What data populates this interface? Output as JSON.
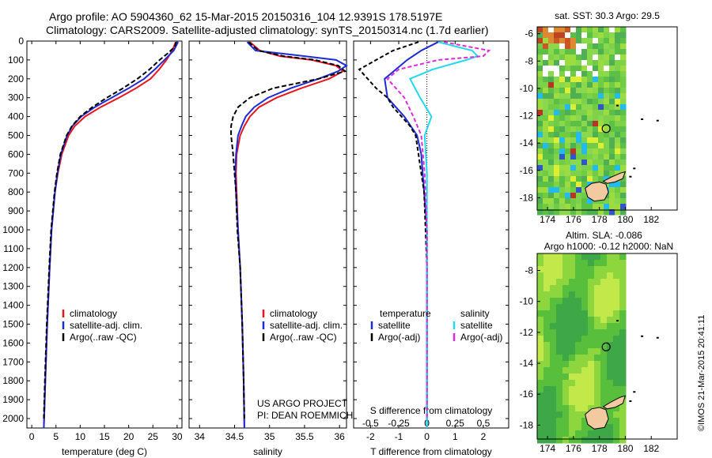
{
  "header": {
    "line1": "Argo profile: AO 5904360_62 15-Mar-2015 20150316_104 12.9391S 178.5197E",
    "line2": "Climatology: CARS2009. Satellite-adjusted climatology: synTS_20150314.nc (1.7d earlier)"
  },
  "side_stamp": "©IMOS 21-Mar-2015 20:41:11",
  "colors": {
    "climatology": "#e8141e",
    "satellite": "#1c2bd6",
    "argo": "#000000",
    "satellite_salinity": "#22d8ee",
    "argo_salinity": "#e02ae0",
    "land": "#f3c9a0"
  },
  "chart_data": [
    {
      "type": "line",
      "id": "temperature",
      "xlabel": "temperature (deg C)",
      "xlim": [
        -1,
        31
      ],
      "ylim": [
        2050,
        0
      ],
      "xticks": [
        0,
        5,
        10,
        15,
        20,
        25,
        30
      ],
      "yticks": [
        0,
        100,
        200,
        300,
        400,
        500,
        600,
        700,
        800,
        900,
        1000,
        1100,
        1200,
        1300,
        1400,
        1500,
        1600,
        1700,
        1800,
        1900,
        2000
      ],
      "legend": [
        "climatology",
        "satellite-adj. clim.",
        "Argo(..raw -QC)"
      ],
      "series": [
        {
          "name": "climatology",
          "color": "#e8141e",
          "depth": [
            5,
            50,
            100,
            150,
            200,
            250,
            300,
            350,
            400,
            450,
            500,
            600,
            700,
            800,
            1000,
            1200,
            1500,
            1800,
            2050
          ],
          "values": [
            29.7,
            29.0,
            27.8,
            26.3,
            24.5,
            21.5,
            18.0,
            14.2,
            11.0,
            8.9,
            7.6,
            6.2,
            5.4,
            4.8,
            4.1,
            3.7,
            3.2,
            2.8,
            2.5
          ]
        },
        {
          "name": "satellite-adj. clim.",
          "color": "#1c2bd6",
          "depth": [
            5,
            50,
            100,
            150,
            200,
            250,
            300,
            350,
            400,
            450,
            500,
            600,
            700,
            800,
            1000,
            1200,
            1500,
            1800,
            2050
          ],
          "values": [
            30.2,
            29.3,
            27.4,
            25.4,
            23.2,
            20.0,
            16.5,
            13.0,
            10.2,
            8.4,
            7.3,
            6.0,
            5.3,
            4.8,
            4.1,
            3.7,
            3.2,
            2.8,
            2.5
          ]
        },
        {
          "name": "Argo(..raw -QC)",
          "color": "#000000",
          "depth": [
            5,
            30,
            60,
            100,
            150,
            200,
            250,
            300,
            350,
            400,
            450,
            500,
            600,
            700,
            800,
            1000,
            1200,
            1500,
            1800,
            2000
          ],
          "values": [
            29.8,
            29.5,
            28.3,
            26.4,
            24.3,
            21.8,
            18.8,
            15.5,
            12.5,
            10.0,
            8.3,
            7.2,
            5.9,
            5.2,
            4.7,
            4.0,
            3.6,
            3.1,
            2.7,
            2.5
          ]
        }
      ]
    },
    {
      "type": "line",
      "id": "salinity",
      "xlabel": "salinity",
      "xlim": [
        33.85,
        36.1
      ],
      "ylim": [
        2050,
        0
      ],
      "xticks": [
        34,
        34.5,
        35,
        35.5,
        36
      ],
      "legend": [
        "climatology",
        "satellite-adj. clim.",
        "Argo(..raw -QC)"
      ],
      "annotation": [
        "US ARGO PROJECT",
        "PI: DEAN ROEMMICH"
      ],
      "series": [
        {
          "name": "climatology",
          "color": "#e8141e",
          "depth": [
            5,
            50,
            80,
            100,
            130,
            160,
            200,
            250,
            300,
            350,
            400,
            450,
            500,
            600,
            700,
            800,
            1000,
            1200,
            1500,
            1800,
            2050
          ],
          "values": [
            34.72,
            34.86,
            35.15,
            35.6,
            35.95,
            36.05,
            35.85,
            35.45,
            35.1,
            34.85,
            34.72,
            34.64,
            34.58,
            34.53,
            34.52,
            34.53,
            34.55,
            34.58,
            34.61,
            34.63,
            34.64
          ]
        },
        {
          "name": "satellite-adj. clim.",
          "color": "#1c2bd6",
          "depth": [
            5,
            50,
            80,
            100,
            130,
            160,
            200,
            250,
            300,
            350,
            400,
            450,
            500,
            600,
            700,
            800,
            1000,
            1200,
            1500,
            1800,
            2050
          ],
          "values": [
            34.68,
            34.8,
            35.5,
            35.95,
            36.1,
            35.98,
            35.7,
            35.3,
            34.98,
            34.78,
            34.66,
            34.6,
            34.55,
            34.52,
            34.51,
            34.52,
            34.55,
            34.58,
            34.61,
            34.63,
            34.64
          ]
        },
        {
          "name": "Argo(..raw -QC)",
          "color": "#000000",
          "depth": [
            5,
            50,
            80,
            100,
            130,
            160,
            200,
            250,
            300,
            350,
            400,
            450,
            500,
            600,
            700,
            800,
            1000,
            1200,
            1500,
            1800,
            2000
          ],
          "values": [
            34.7,
            34.84,
            35.2,
            35.65,
            35.98,
            36.08,
            35.7,
            35.05,
            34.72,
            34.55,
            34.48,
            34.45,
            34.45,
            34.48,
            34.5,
            34.52,
            34.54,
            34.58,
            34.61,
            34.63,
            34.64
          ]
        }
      ]
    },
    {
      "type": "line",
      "id": "difference",
      "xlabel": "T difference from climatology",
      "xlabel2": "S difference from climatology",
      "xlim": [
        -2.6,
        2.9
      ],
      "ylim": [
        2050,
        0
      ],
      "xticks": [
        -2,
        -1,
        0,
        1,
        2
      ],
      "sticks": [
        -0.5,
        -0.25,
        0,
        0.25,
        0.5
      ],
      "s_xlim": [
        -0.65,
        0.725
      ],
      "legend_t": [
        "temperature",
        "satellite",
        "Argo(-adj)"
      ],
      "legend_s": [
        "salinity",
        "satellite",
        "Argo(-adj)"
      ],
      "series": [
        {
          "name": "satellite",
          "quantity": "temperature",
          "color": "#1c2bd6",
          "depth": [
            5,
            50,
            100,
            150,
            200,
            300,
            400,
            500,
            600,
            800,
            1000,
            1500,
            2050
          ],
          "values": [
            0.4,
            -0.2,
            -0.7,
            -1.1,
            -1.5,
            -1.4,
            -0.8,
            -0.35,
            -0.2,
            -0.1,
            0,
            0,
            0
          ]
        },
        {
          "name": "Argo(-adj)",
          "quantity": "temperature",
          "color": "#000000",
          "depth": [
            5,
            50,
            100,
            150,
            200,
            250,
            300,
            350,
            400,
            450,
            500,
            600,
            700,
            800,
            1000,
            1200,
            1500,
            1800,
            2000
          ],
          "values": [
            -0.3,
            -1.2,
            -1.8,
            -2.4,
            -2.1,
            -1.8,
            -1.4,
            -1.2,
            -0.9,
            -0.6,
            -0.4,
            -0.3,
            -0.2,
            -0.1,
            -0.05,
            0,
            0,
            0,
            0
          ]
        },
        {
          "name": "satellite",
          "quantity": "salinity",
          "color": "#22d8ee",
          "depth": [
            5,
            50,
            80,
            100,
            150,
            200,
            300,
            400,
            500,
            700,
            1000,
            1500,
            2050
          ],
          "values": [
            0.1,
            0.4,
            0.45,
            0.35,
            0.05,
            -0.15,
            -0.06,
            0.04,
            -0.02,
            0,
            0,
            0,
            0
          ]
        },
        {
          "name": "Argo(-adj)",
          "quantity": "salinity",
          "color": "#e02ae0",
          "depth": [
            5,
            50,
            80,
            100,
            150,
            200,
            300,
            400,
            500,
            700,
            1000,
            1500,
            2000
          ],
          "values": [
            0.15,
            0.55,
            0.5,
            0.1,
            -0.25,
            -0.35,
            -0.2,
            -0.12,
            -0.05,
            -0.02,
            0,
            0,
            0
          ]
        }
      ]
    },
    {
      "type": "heatmap",
      "id": "sst_map",
      "title": "sat. SST: 30.3  Argo: 29.5",
      "xlim": [
        173.2,
        184
      ],
      "ylim": [
        -18.9,
        -5.5
      ],
      "xticks": [
        174,
        176,
        178,
        180,
        182
      ],
      "yticks": [
        -6,
        -8,
        -10,
        -12,
        -14,
        -16,
        -18
      ],
      "data_xlim": [
        173.2,
        180
      ],
      "argo_position": [
        178.52,
        -12.94
      ]
    },
    {
      "type": "heatmap",
      "id": "sla_map",
      "title_line1": "Altim. SLA: -0.086",
      "title_line2": "Argo h1000: -0.12 h2000: NaN",
      "xlim": [
        173.2,
        184
      ],
      "ylim": [
        -18.9,
        -6.9
      ],
      "xticks": [
        174,
        176,
        178,
        180,
        182
      ],
      "yticks": [
        -8,
        -10,
        -12,
        -14,
        -16,
        -18
      ],
      "data_xlim": [
        173.2,
        180
      ],
      "argo_position": [
        178.52,
        -12.94
      ]
    }
  ]
}
